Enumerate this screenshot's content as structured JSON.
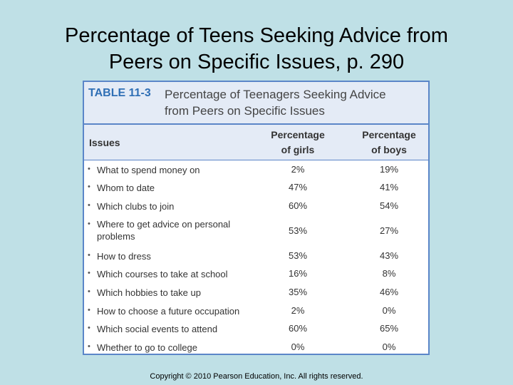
{
  "slide": {
    "title_line1": "Percentage of Teens Seeking Advice from",
    "title_line2": "Peers on Specific Issues, p. 290",
    "copyright": "Copyright © 2010 Pearson Education, Inc. All rights reserved."
  },
  "table": {
    "number": "TABLE 11-3",
    "caption_line1": "Percentage of Teenagers Seeking Advice",
    "caption_line2": "from Peers on Specific Issues",
    "headers": {
      "issues": "Issues",
      "girls_line1": "Percentage",
      "girls_line2": "of girls",
      "boys_line1": "Percentage",
      "boys_line2": "of boys"
    },
    "bullet": "•",
    "rows": [
      {
        "issue": "What to spend money on",
        "girls": "2%",
        "boys": "19%"
      },
      {
        "issue": "Whom to date",
        "girls": "47%",
        "boys": "41%"
      },
      {
        "issue": "Which clubs to join",
        "girls": "60%",
        "boys": "54%"
      },
      {
        "issue": "Where to get advice on personal problems",
        "girls": "53%",
        "boys": "27%"
      },
      {
        "issue": "How to dress",
        "girls": "53%",
        "boys": "43%"
      },
      {
        "issue": "Which courses to take at school",
        "girls": "16%",
        "boys": "8%"
      },
      {
        "issue": "Which hobbies to take up",
        "girls": "35%",
        "boys": "46%"
      },
      {
        "issue": "How to choose a future occupation",
        "girls": "2%",
        "boys": "0%"
      },
      {
        "issue": "Which social events to attend",
        "girls": "60%",
        "boys": "65%"
      },
      {
        "issue": "Whether to go to college",
        "girls": "0%",
        "boys": "0%"
      }
    ]
  }
}
